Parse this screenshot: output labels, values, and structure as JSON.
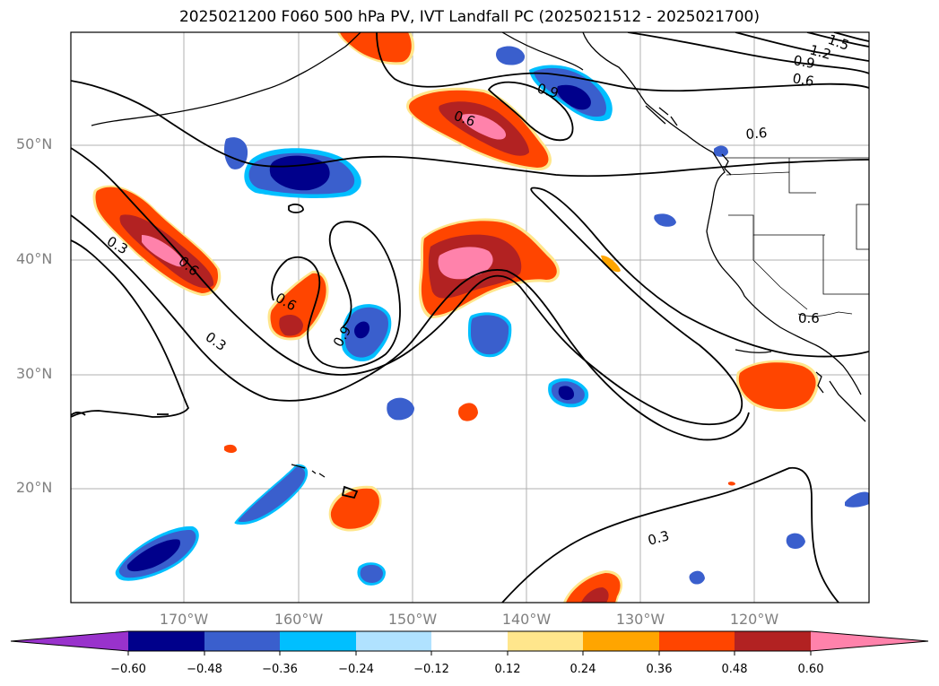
{
  "title": "2025021200 F060 500 hPa PV, IVT Landfall PC (2025021512 - 2025021700)",
  "lat_labels": [
    "50°N",
    "40°N",
    "30°N",
    "20°N"
  ],
  "lon_labels": [
    "170°W",
    "160°W",
    "150°W",
    "140°W",
    "130°W",
    "120°W"
  ],
  "contour_labels": [
    "0.3",
    "0.3",
    "0.6",
    "0.6",
    "0.6",
    "0.6",
    "0.6",
    "0.6",
    "0.9",
    "0.9",
    "0.9",
    "1.2",
    "1.5",
    "0.3",
    "0.6"
  ],
  "colorbar": {
    "ticks": [
      "−0.60",
      "−0.48",
      "−0.36",
      "−0.24",
      "−0.12",
      "0.12",
      "0.24",
      "0.36",
      "0.48",
      "0.60"
    ],
    "colors": [
      "#9932cc",
      "#00008b",
      "#3a5fcd",
      "#00bfff",
      "#b0e2ff",
      "#ffffff",
      "#ffe68c",
      "#ffa500",
      "#ff4500",
      "#b22222",
      "#ff82ab"
    ]
  },
  "colors": {
    "deep_blue": "#00008b",
    "mid_blue": "#3a5fcd",
    "cyan": "#00bfff",
    "light_blue": "#b0e2ff",
    "yellow": "#ffe68c",
    "orange": "#ffa500",
    "red_orange": "#ff4500",
    "dark_red": "#b22222",
    "pink": "#ff82ab"
  }
}
